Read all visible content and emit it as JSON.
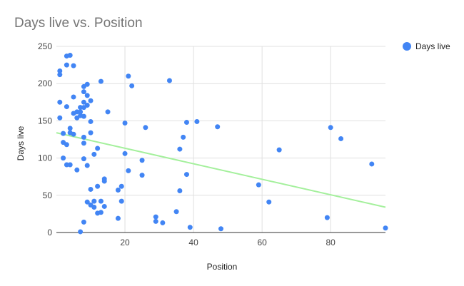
{
  "chart_data": {
    "type": "scatter",
    "title": "Days live vs. Position",
    "xlabel": "Position",
    "ylabel": "Days live",
    "xlim": [
      0,
      96
    ],
    "ylim": [
      0,
      250
    ],
    "x_ticks": [
      20,
      40,
      60,
      80
    ],
    "y_ticks": [
      0,
      50,
      100,
      150,
      200,
      250
    ],
    "grid": true,
    "legend": "right",
    "colors": {
      "points": "#4285f4",
      "trendline": "#a4f09c",
      "grid": "#e0e0e0",
      "axis": "#333333"
    },
    "series": [
      {
        "name": "Days live",
        "points": [
          [
            1,
            217
          ],
          [
            1,
            212
          ],
          [
            1,
            175
          ],
          [
            1,
            154
          ],
          [
            2,
            133
          ],
          [
            2,
            121
          ],
          [
            2,
            100
          ],
          [
            3,
            237
          ],
          [
            3,
            225
          ],
          [
            3,
            169
          ],
          [
            3,
            118
          ],
          [
            3,
            91
          ],
          [
            4,
            238
          ],
          [
            4,
            140
          ],
          [
            4,
            134
          ],
          [
            4,
            91
          ],
          [
            5,
            224
          ],
          [
            5,
            182
          ],
          [
            5,
            160
          ],
          [
            5,
            132
          ],
          [
            6,
            162
          ],
          [
            6,
            154
          ],
          [
            6,
            84
          ],
          [
            7,
            168
          ],
          [
            7,
            162
          ],
          [
            7,
            157
          ],
          [
            7,
            1
          ],
          [
            8,
            196
          ],
          [
            8,
            189
          ],
          [
            8,
            175
          ],
          [
            8,
            168
          ],
          [
            8,
            156
          ],
          [
            8,
            128
          ],
          [
            8,
            120
          ],
          [
            8,
            99
          ],
          [
            8,
            14
          ],
          [
            9,
            199
          ],
          [
            9,
            184
          ],
          [
            9,
            171
          ],
          [
            9,
            90
          ],
          [
            9,
            41
          ],
          [
            10,
            177
          ],
          [
            10,
            149
          ],
          [
            10,
            134
          ],
          [
            10,
            58
          ],
          [
            10,
            37
          ],
          [
            11,
            105
          ],
          [
            11,
            42
          ],
          [
            11,
            34
          ],
          [
            12,
            113
          ],
          [
            12,
            62
          ],
          [
            12,
            26
          ],
          [
            13,
            203
          ],
          [
            13,
            42
          ],
          [
            13,
            27
          ],
          [
            14,
            72
          ],
          [
            14,
            69
          ],
          [
            14,
            35
          ],
          [
            15,
            162
          ],
          [
            18,
            57
          ],
          [
            18,
            19
          ],
          [
            19,
            62
          ],
          [
            19,
            42
          ],
          [
            20,
            147
          ],
          [
            20,
            106
          ],
          [
            21,
            210
          ],
          [
            21,
            83
          ],
          [
            22,
            197
          ],
          [
            25,
            97
          ],
          [
            25,
            77
          ],
          [
            26,
            141
          ],
          [
            29,
            21
          ],
          [
            29,
            15
          ],
          [
            31,
            13
          ],
          [
            33,
            204
          ],
          [
            35,
            28
          ],
          [
            36,
            112
          ],
          [
            36,
            56
          ],
          [
            37,
            128
          ],
          [
            38,
            148
          ],
          [
            38,
            78
          ],
          [
            39,
            7
          ],
          [
            41,
            149
          ],
          [
            47,
            142
          ],
          [
            48,
            5
          ],
          [
            59,
            64
          ],
          [
            62,
            41
          ],
          [
            65,
            111
          ],
          [
            79,
            20
          ],
          [
            80,
            141
          ],
          [
            83,
            126
          ],
          [
            92,
            92
          ],
          [
            96,
            6
          ]
        ]
      }
    ],
    "trendline": {
      "x": [
        0,
        96
      ],
      "y": [
        134,
        34
      ]
    }
  }
}
